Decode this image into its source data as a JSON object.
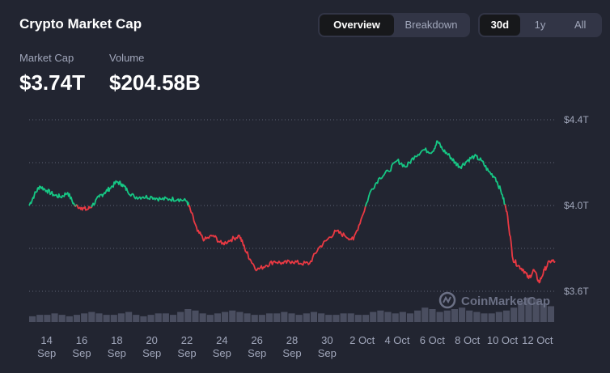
{
  "header": {
    "title": "Crypto Market Cap",
    "view_tabs": [
      "Overview",
      "Breakdown"
    ],
    "range_tabs": [
      "30d",
      "1y",
      "All"
    ]
  },
  "stats": {
    "market_cap_label": "Market Cap",
    "market_cap_value": "$3.74T",
    "volume_label": "Volume",
    "volume_value": "$204.58B"
  },
  "watermark": "CoinMarketCap",
  "colors": {
    "up": "#16c784",
    "down": "#ea3943",
    "background": "#222531",
    "grid": "#5e6275",
    "volume": "#4a4e60"
  },
  "chart_data": {
    "type": "line",
    "baseline": 4.0,
    "ylim": [
      3.6,
      4.4
    ],
    "yticks": [
      {
        "value": 3.6,
        "label": "$3.6T"
      },
      {
        "value": 4.0,
        "label": "$4.0T"
      },
      {
        "value": 4.4,
        "label": "$4.4T"
      }
    ],
    "xticks": [
      {
        "day": 14,
        "label": [
          "14",
          "Sep"
        ]
      },
      {
        "day": 16,
        "label": [
          "16",
          "Sep"
        ]
      },
      {
        "day": 18,
        "label": [
          "18",
          "Sep"
        ]
      },
      {
        "day": 20,
        "label": [
          "20",
          "Sep"
        ]
      },
      {
        "day": 22,
        "label": [
          "22",
          "Sep"
        ]
      },
      {
        "day": 24,
        "label": [
          "24",
          "Sep"
        ]
      },
      {
        "day": 26,
        "label": [
          "26",
          "Sep"
        ]
      },
      {
        "day": 28,
        "label": [
          "28",
          "Sep"
        ]
      },
      {
        "day": 30,
        "label": [
          "30",
          "Sep"
        ]
      },
      {
        "day": 32,
        "label": [
          "2 Oct"
        ]
      },
      {
        "day": 34,
        "label": [
          "4 Oct"
        ]
      },
      {
        "day": 36,
        "label": [
          "6 Oct"
        ]
      },
      {
        "day": 38,
        "label": [
          "8 Oct"
        ]
      },
      {
        "day": 40,
        "label": [
          "10 Oct"
        ]
      },
      {
        "day": 42,
        "label": [
          "12 Oct"
        ]
      }
    ],
    "series": [
      {
        "x": [
          13.0,
          13.3,
          13.6,
          14.0,
          14.4,
          14.8,
          15.2,
          15.6,
          16.0,
          16.3,
          16.6,
          17.0,
          17.3,
          17.6,
          18.0,
          18.3,
          18.6,
          19.0,
          19.5,
          20.0,
          20.5,
          21.0,
          21.5,
          22.0,
          22.2,
          22.6,
          23.0,
          23.5,
          24.0,
          24.5,
          25.0,
          25.3,
          25.6,
          26.0,
          26.5,
          27.0,
          27.5,
          28.0,
          28.5,
          29.0,
          29.5,
          30.0,
          30.5,
          31.0,
          31.5,
          32.0,
          32.5,
          33.0,
          33.5,
          34.0,
          34.5,
          35.0,
          35.5,
          36.0,
          36.3,
          36.6,
          37.0,
          37.3,
          37.6,
          38.0,
          38.4,
          38.8,
          39.2,
          39.6,
          40.0,
          40.3,
          40.6,
          40.9,
          41.2,
          41.5,
          41.8,
          42.1,
          42.4,
          42.7,
          43.0
        ],
        "y": [
          4.0,
          4.05,
          4.09,
          4.07,
          4.05,
          4.04,
          4.06,
          4.0,
          3.99,
          3.98,
          4.0,
          4.04,
          4.06,
          4.08,
          4.11,
          4.1,
          4.07,
          4.04,
          4.04,
          4.04,
          4.03,
          4.03,
          4.03,
          4.02,
          3.98,
          3.88,
          3.84,
          3.86,
          3.82,
          3.84,
          3.86,
          3.8,
          3.75,
          3.7,
          3.72,
          3.74,
          3.73,
          3.74,
          3.73,
          3.73,
          3.8,
          3.84,
          3.88,
          3.86,
          3.84,
          3.95,
          4.07,
          4.13,
          4.16,
          4.21,
          4.18,
          4.23,
          4.26,
          4.25,
          4.3,
          4.26,
          4.23,
          4.2,
          4.18,
          4.21,
          4.23,
          4.21,
          4.16,
          4.13,
          4.05,
          3.95,
          3.75,
          3.72,
          3.7,
          3.66,
          3.7,
          3.64,
          3.7,
          3.74,
          3.74
        ]
      }
    ],
    "volume": [
      0.4,
      0.5,
      0.5,
      0.6,
      0.5,
      0.4,
      0.5,
      0.6,
      0.7,
      0.6,
      0.5,
      0.5,
      0.6,
      0.7,
      0.5,
      0.4,
      0.5,
      0.6,
      0.6,
      0.5,
      0.7,
      0.9,
      0.8,
      0.6,
      0.5,
      0.6,
      0.7,
      0.8,
      0.7,
      0.6,
      0.5,
      0.5,
      0.6,
      0.6,
      0.7,
      0.6,
      0.5,
      0.6,
      0.7,
      0.6,
      0.5,
      0.5,
      0.6,
      0.6,
      0.5,
      0.5,
      0.7,
      0.8,
      0.7,
      0.6,
      0.7,
      0.6,
      0.8,
      1.0,
      0.9,
      0.7,
      0.8,
      0.9,
      1.0,
      0.8,
      0.7,
      0.6,
      0.6,
      0.7,
      0.8,
      1.0,
      1.4,
      1.7,
      1.6,
      1.3,
      1.1
    ]
  }
}
